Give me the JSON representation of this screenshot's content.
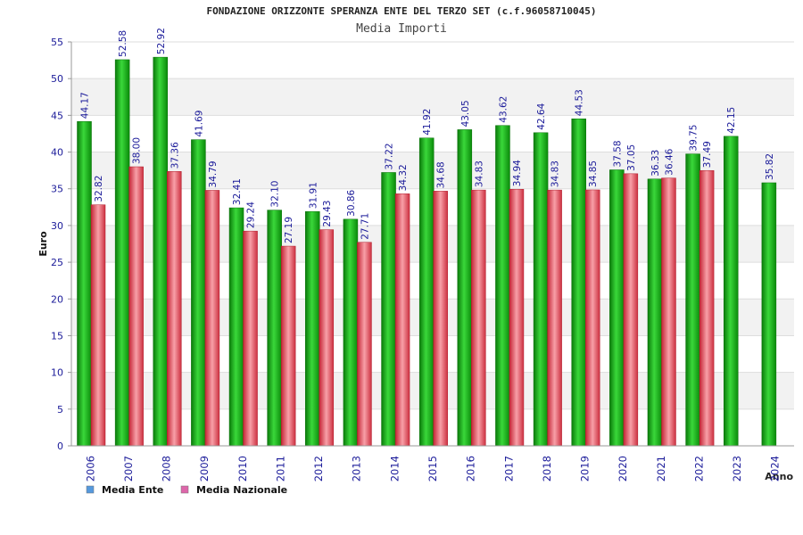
{
  "chart_data": {
    "type": "bar",
    "title": "FONDAZIONE ORIZZONTE SPERANZA ENTE DEL TERZO SET (c.f.96058710045)",
    "subtitle": "Media Importi",
    "xlabel": "Anno",
    "ylabel": "Euro",
    "ylim": [
      0,
      55
    ],
    "yticks": [
      "0",
      "5",
      "10",
      "15",
      "20",
      "25",
      "30",
      "35",
      "40",
      "45",
      "50",
      "55"
    ],
    "grid": true,
    "legend_position": "bottom-left",
    "categories": [
      "2006",
      "2007",
      "2008",
      "2009",
      "2010",
      "2011",
      "2012",
      "2013",
      "2014",
      "2015",
      "2016",
      "2017",
      "2018",
      "2019",
      "2020",
      "2021",
      "2022",
      "2023",
      "2024"
    ],
    "series": [
      {
        "name": "Media Ente",
        "color": "#22aa22",
        "legend_color": "#5599dd",
        "values": [
          44.17,
          52.58,
          52.92,
          41.69,
          32.41,
          32.1,
          31.91,
          30.86,
          37.22,
          41.92,
          43.05,
          43.62,
          42.64,
          44.53,
          37.58,
          36.33,
          39.75,
          42.15,
          35.82
        ],
        "labels": [
          "44.17",
          "52.58",
          "52.92",
          "41.69",
          "32.41",
          "32.10",
          "31.91",
          "30.86",
          "37.22",
          "41.92",
          "43.05",
          "43.62",
          "42.64",
          "44.53",
          "37.58",
          "36.33",
          "39.75",
          "42.15",
          "35.82"
        ]
      },
      {
        "name": "Media Nazionale",
        "color": "#ee4455",
        "legend_color": "#dd66aa",
        "values": [
          32.82,
          38.0,
          37.36,
          34.79,
          29.24,
          27.19,
          29.43,
          27.71,
          34.32,
          34.68,
          34.83,
          34.94,
          34.83,
          34.85,
          37.05,
          36.46,
          37.49,
          null,
          null
        ],
        "labels": [
          "32.82",
          "38.00",
          "37.36",
          "34.79",
          "29.24",
          "27.19",
          "29.43",
          "27.71",
          "34.32",
          "34.68",
          "34.83",
          "34.94",
          "34.83",
          "34.85",
          "37.05",
          "36.46",
          "37.49",
          "",
          ""
        ]
      }
    ]
  }
}
